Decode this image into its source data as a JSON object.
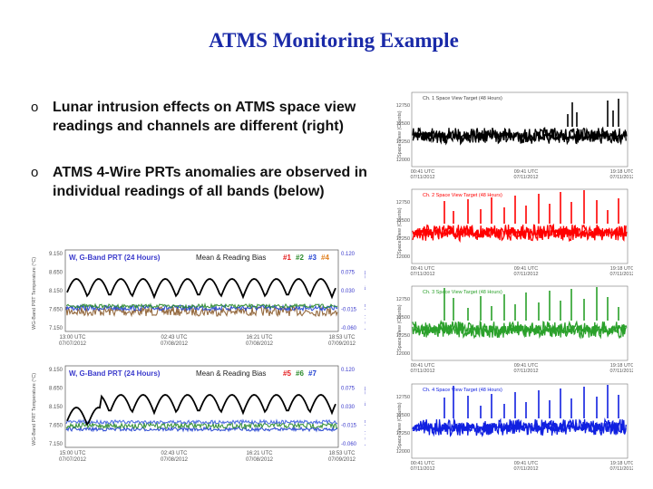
{
  "slide": {
    "title": "ATMS Monitoring Example",
    "bullets": [
      {
        "marker": "o",
        "text": "Lunar intrusion effects on ATMS space view readings and channels are different (right)"
      },
      {
        "marker": "o",
        "text": "ATMS 4-Wire PRTs anomalies are observed in individual readings of all bands (below)"
      }
    ]
  },
  "prt_plots": [
    {
      "title": "W, G-Band PRT (24 Hours)",
      "legend_title": "Mean & Reading Bias",
      "series_labels": [
        "#1",
        "#2",
        "#3",
        "#4"
      ],
      "series_colors": [
        "#e41a1c",
        "#2a8a2a",
        "#2040d0",
        "#e08020"
      ],
      "y_left_ticks": [
        "9.150",
        "8.650",
        "8.150",
        "7.650",
        "7.150"
      ],
      "y_right_ticks": [
        "0.120",
        "0.075",
        "0.030",
        "-0.015",
        "-0.060"
      ],
      "x_ticks": [
        {
          "time": "13:00 UTC",
          "date": "07/07/2012"
        },
        {
          "time": "02:43 UTC",
          "date": "07/08/2012"
        },
        {
          "time": "16:21 UTC",
          "date": "07/08/2012"
        },
        {
          "time": "18:53 UTC",
          "date": "07/09/2012"
        }
      ],
      "y_left_label": "WG-Band PRT Temperature (°C)",
      "y_right_label": "Individual Sensor Bias (°C)"
    },
    {
      "title": "W, G-Band PRT (24 Hours)",
      "legend_title": "Mean & Reading Bias",
      "series_labels": [
        "#5",
        "#6",
        "#7"
      ],
      "series_colors": [
        "#e41a1c",
        "#2a8a2a",
        "#2040d0"
      ],
      "y_left_ticks": [
        "9.150",
        "8.650",
        "8.150",
        "7.650",
        "7.150"
      ],
      "y_right_ticks": [
        "0.120",
        "0.075",
        "0.030",
        "-0.015",
        "-0.060"
      ],
      "x_ticks": [
        {
          "time": "15:00 UTC",
          "date": "07/07/2012"
        },
        {
          "time": "02:43 UTC",
          "date": "07/08/2012"
        },
        {
          "time": "16:21 UTC",
          "date": "07/08/2012"
        },
        {
          "time": "18:53 UTC",
          "date": "07/09/2012"
        }
      ],
      "y_left_label": "WG-Band PRT Temperature (°C)",
      "y_right_label": "Individual Sensor Bias (°C)"
    }
  ],
  "space_plots": [
    {
      "title": "Ch. 1 Space View Target (48 Hours)",
      "color": "#000000",
      "y_label": "Space View (Counts)"
    },
    {
      "title": "Ch. 2 Space View Target (48 Hours)",
      "color": "#ff0000",
      "y_label": "Space View (Counts)"
    },
    {
      "title": "Ch. 3 Space View Target (48 Hours)",
      "color": "#2aa02a",
      "y_label": "Space View (Counts)"
    },
    {
      "title": "Ch. 4 Space View Target (48 Hours)",
      "color": "#1020e0",
      "y_label": "Space View (Counts)"
    }
  ],
  "space_x_ticks": [
    {
      "time": "00:41 UTC",
      "date": "07/11/2012"
    },
    {
      "time": "09:41 UTC",
      "date": "07/11/2012"
    },
    {
      "time": "19:18 UTC",
      "date": "07/11/2012"
    }
  ],
  "space_y_ticks": [
    "12750",
    "12500",
    "12250",
    "12000"
  ]
}
